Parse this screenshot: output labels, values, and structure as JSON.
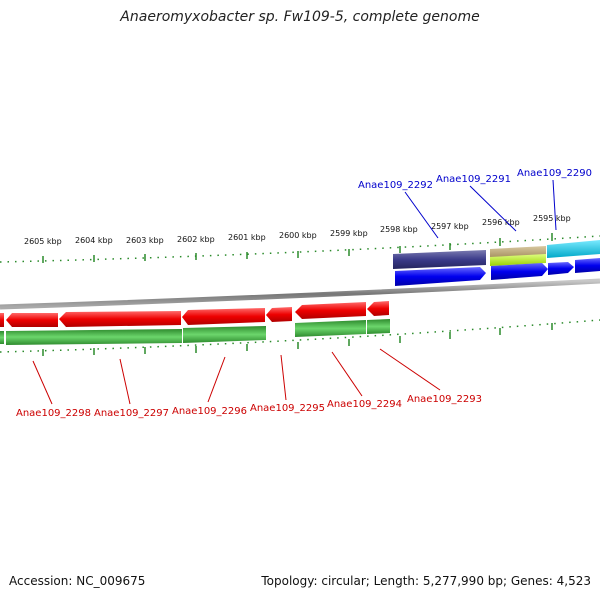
{
  "title": "Anaeromyxobacter sp. Fw109-5, complete genome",
  "footer": {
    "accession": "Accession: NC_009675",
    "summary": "Topology: circular; Length: 5,277,990 bp; Genes: 4,523"
  },
  "colors": {
    "forward_gene": "#0000ee",
    "reverse_gene": "#ee0000",
    "cds_forward": "#3b3b8a",
    "cds_reverse": "#2f9a2f",
    "tick": "#2a8a2a",
    "backbone": "#8a8a8a",
    "forward_label": "#0000cc",
    "reverse_label": "#cc0000"
  },
  "ruler_labels": [
    "2605 kbp",
    "2604 kbp",
    "2603 kbp",
    "2602 kbp",
    "2601 kbp",
    "2600 kbp",
    "2599 kbp",
    "2598 kbp",
    "2597 kbp",
    "2596 kbp",
    "2595 kbp"
  ],
  "forward_gene_labels": [
    "Anae109_2292",
    "Anae109_2291",
    "Anae109_2290"
  ],
  "reverse_gene_labels": [
    "Anae109_2298",
    "Anae109_2297",
    "Anae109_2296",
    "Anae109_2295",
    "Anae109_2294",
    "Anae109_2293"
  ]
}
